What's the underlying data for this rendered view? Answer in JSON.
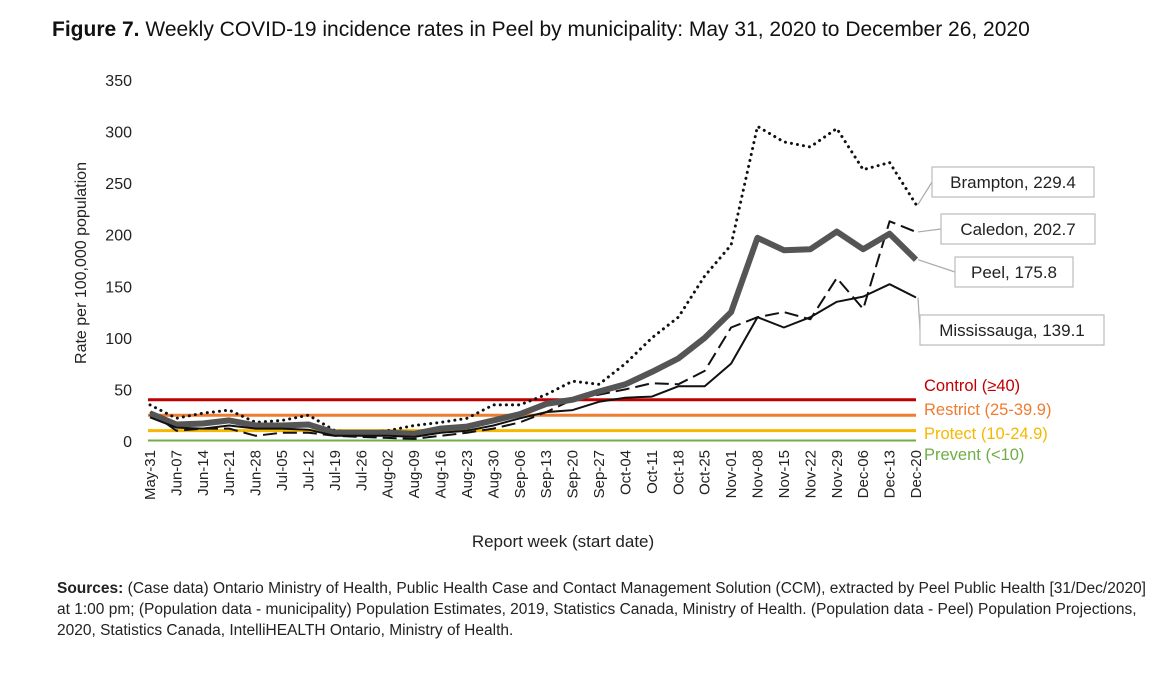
{
  "figure": {
    "label": "Figure 7.",
    "title": "Weekly COVID-19 incidence rates in Peel by municipality: May 31, 2020 to December 26, 2020"
  },
  "sources": {
    "label": "Sources:",
    "text": "(Case data) Ontario Ministry of Health, Public Health Case and Contact Management Solution (CCM), extracted by Peel Public Health [31/Dec/2020] at 1:00 pm; (Population data - municipality) Population Estimates, 2019, Statistics Canada, Ministry of Health. (Population data - Peel) Population Projections, 2020, Statistics Canada, IntelliHEALTH Ontario, Ministry of Health."
  },
  "chart_data": {
    "type": "line",
    "xlabel": "Report week (start date)",
    "ylabel": "Rate per 100,000 population",
    "ylim": [
      0,
      350
    ],
    "yticks": [
      0,
      50,
      100,
      150,
      200,
      250,
      300,
      350
    ],
    "categories": [
      "May-31",
      "Jun-07",
      "Jun-14",
      "Jun-21",
      "Jun-28",
      "Jul-05",
      "Jul-12",
      "Jul-19",
      "Jul-26",
      "Aug-02",
      "Aug-09",
      "Aug-16",
      "Aug-23",
      "Aug-30",
      "Sep-06",
      "Sep-13",
      "Sep-20",
      "Sep-27",
      "Oct-04",
      "Oct-11",
      "Oct-18",
      "Oct-25",
      "Nov-01",
      "Nov-08",
      "Nov-15",
      "Nov-22",
      "Nov-29",
      "Dec-06",
      "Dec-13",
      "Dec-20"
    ],
    "series": [
      {
        "name": "Brampton",
        "style": "dotted",
        "color": "#111111",
        "values": [
          35,
          22,
          27,
          30,
          18,
          20,
          25,
          10,
          8,
          10,
          15,
          18,
          22,
          35,
          35,
          45,
          58,
          55,
          75,
          100,
          120,
          160,
          190,
          305,
          290,
          285,
          303,
          263,
          270,
          229.4
        ]
      },
      {
        "name": "Caledon",
        "style": "dashed",
        "color": "#111111",
        "values": [
          28,
          10,
          12,
          12,
          5,
          8,
          8,
          5,
          4,
          3,
          2,
          5,
          8,
          12,
          18,
          28,
          40,
          45,
          50,
          56,
          55,
          68,
          110,
          120,
          125,
          118,
          158,
          128,
          213,
          202.7
        ]
      },
      {
        "name": "Peel",
        "style": "thick",
        "color": "#555555",
        "values": [
          27,
          16,
          17,
          20,
          15,
          15,
          16,
          8,
          8,
          8,
          7,
          12,
          14,
          20,
          26,
          36,
          40,
          48,
          55,
          67,
          80,
          100,
          125,
          197,
          185,
          186,
          203,
          186,
          201,
          175.8
        ]
      },
      {
        "name": "Mississauga",
        "style": "solid",
        "color": "#111111",
        "values": [
          23,
          13,
          12,
          15,
          12,
          12,
          11,
          5,
          5,
          5,
          4,
          8,
          10,
          15,
          22,
          28,
          30,
          38,
          42,
          43,
          53,
          53,
          75,
          120,
          110,
          120,
          135,
          140,
          152,
          139.1
        ]
      }
    ],
    "thresholds": [
      {
        "label": "Control (≥40)",
        "value": 40,
        "color": "#c00000"
      },
      {
        "label": "Restrict (25-39.9)",
        "value": 25,
        "color": "#ed7d31"
      },
      {
        "label": "Protect (10-24.9)",
        "value": 10,
        "color": "#f5b800"
      },
      {
        "label": "Prevent  (<10)",
        "value": 0,
        "color": "#70ad47"
      }
    ],
    "callouts": [
      {
        "series": "Brampton",
        "label": "Brampton, 229.4"
      },
      {
        "series": "Caledon",
        "label": "Caledon, 202.7"
      },
      {
        "series": "Peel",
        "label": "Peel, 175.8"
      },
      {
        "series": "Mississauga",
        "label": "Mississauga, 139.1"
      }
    ]
  }
}
